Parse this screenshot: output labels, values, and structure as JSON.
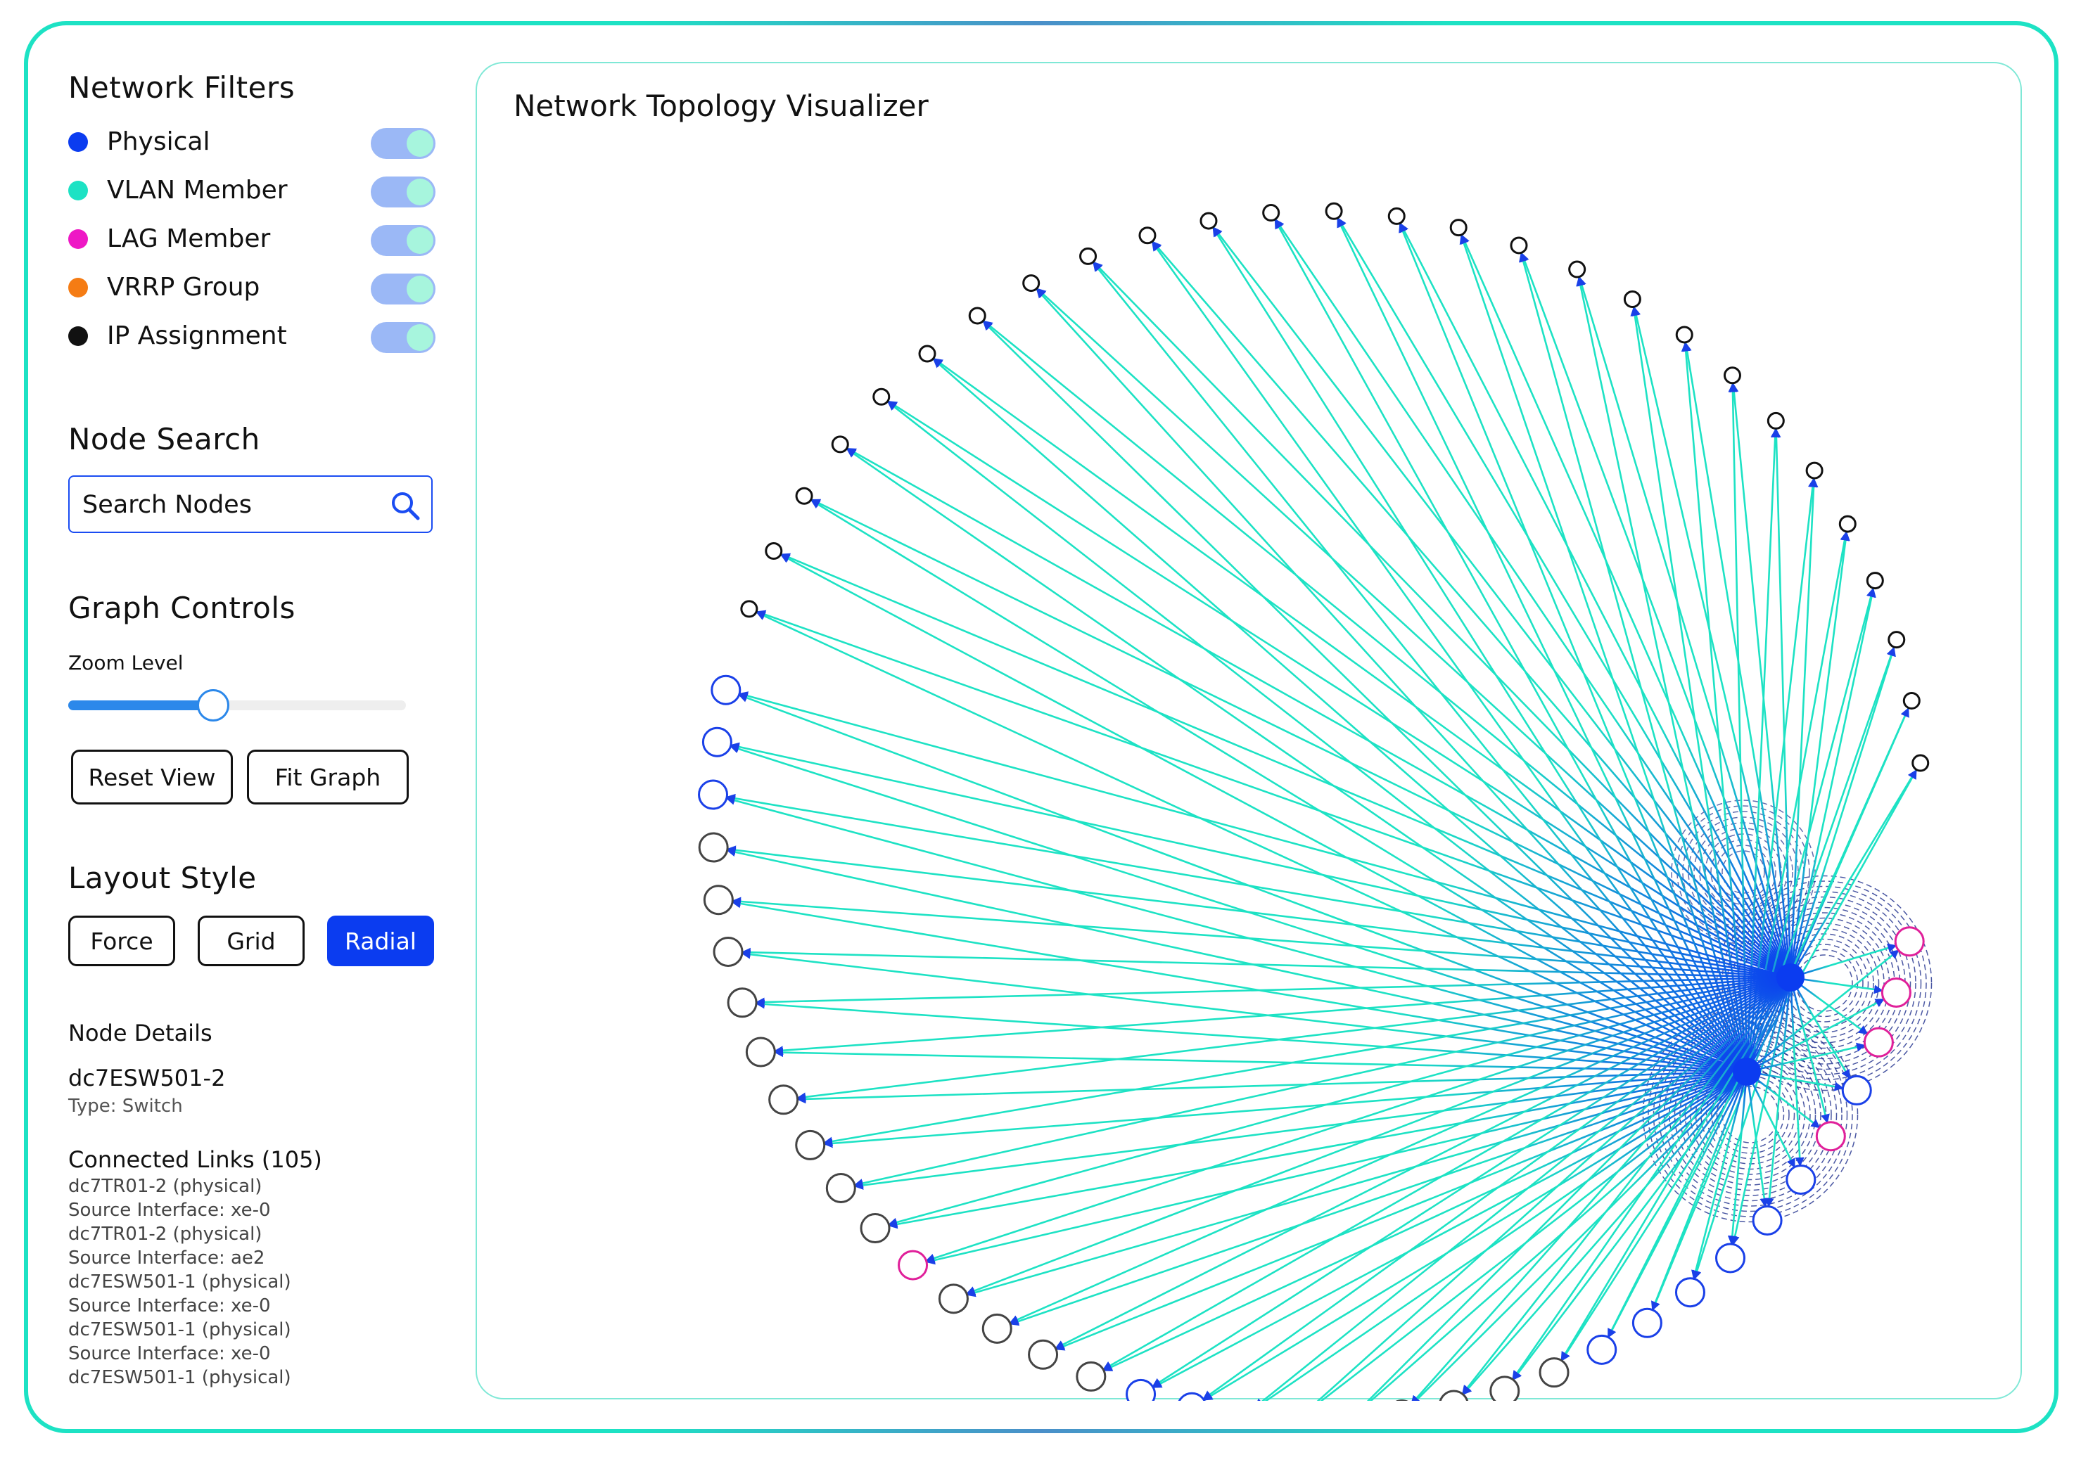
{
  "filters": {
    "title": "Network Filters",
    "items": [
      {
        "label": "Physical",
        "color": "#0b3cf0",
        "enabled": true
      },
      {
        "label": "VLAN Member",
        "color": "#1de2c4",
        "enabled": true
      },
      {
        "label": "LAG Member",
        "color": "#ee18c5",
        "enabled": true
      },
      {
        "label": "VRRP Group",
        "color": "#f57c14",
        "enabled": true
      },
      {
        "label": "IP Assignment",
        "color": "#111111",
        "enabled": true
      }
    ]
  },
  "search": {
    "title": "Node Search",
    "placeholder": "Search Nodes",
    "icon": "search-icon"
  },
  "graph_controls": {
    "title": "Graph Controls",
    "zoom_label": "Zoom Level",
    "zoom_value": 0.43,
    "reset_label": "Reset View",
    "fit_label": "Fit Graph"
  },
  "layout_style": {
    "title": "Layout Style",
    "options": [
      "Force",
      "Grid",
      "Radial"
    ],
    "selected": "Radial"
  },
  "node_details": {
    "title": "Node Details",
    "name": "dc7ESW501-2",
    "type": "Type: Switch",
    "links_title": "Connected Links (105)",
    "links": [
      "dc7TR01-2 (physical)",
      "Source Interface: xe-0",
      "dc7TR01-2 (physical)",
      "Source Interface: ae2",
      "dc7ESW501-1 (physical)",
      "Source Interface: xe-0",
      "dc7ESW501-1 (physical)",
      "Source Interface: xe-0",
      "dc7ESW501-1 (physical)"
    ]
  },
  "main": {
    "title": "Network Topology Visualizer"
  },
  "graph": {
    "layout": "radial",
    "colors": {
      "vlan_edge": "#1de2c4",
      "physical_edge": "#0b3cf0",
      "lag_dashed": "#1e2e8c",
      "hub": "#0b3cf0",
      "ring_black": "#111111",
      "ring_gray": "#444444",
      "ring_blue": "#1a40e8",
      "ring_magenta": "#e0209a"
    },
    "ring_node_kinds": [
      "ip",
      "ip",
      "ip",
      "ip",
      "ip",
      "ip",
      "ip",
      "ip",
      "ip",
      "ip",
      "ip",
      "ip",
      "ip",
      "ip",
      "ip",
      "ip",
      "ip",
      "ip",
      "ip",
      "ip",
      "ip",
      "ip",
      "ip",
      "ip",
      "ip",
      "ip",
      "ip",
      "blue",
      "blue",
      "blue",
      "gray",
      "gray",
      "gray",
      "gray",
      "gray",
      "gray",
      "gray",
      "gray",
      "gray",
      "magenta",
      "gray",
      "gray",
      "gray",
      "gray",
      "blue",
      "blue",
      "blue",
      "gray",
      "gray",
      "gray",
      "gray",
      "gray",
      "gray",
      "blue",
      "blue",
      "blue",
      "blue",
      "blue",
      "blue",
      "magenta",
      "blue",
      "magenta",
      "magenta",
      "magenta"
    ]
  }
}
